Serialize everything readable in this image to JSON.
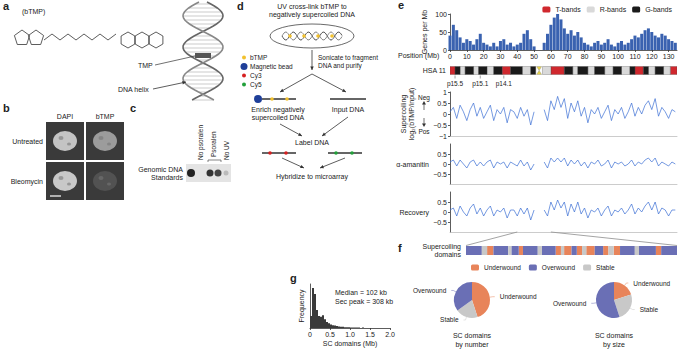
{
  "figure": {
    "a": {
      "letter": "a",
      "compound": "(bTMP)",
      "labels": [
        "TMP",
        "DNA helix"
      ]
    },
    "b": {
      "letter": "b",
      "columns": [
        "DAPI",
        "bTMP"
      ],
      "rows": [
        "Untreated",
        "Bleomycin"
      ]
    },
    "c": {
      "letter": "c",
      "row_label": "Genomic DNA Standards",
      "columns": [
        "No psoralen",
        "Psoralen",
        "No UV"
      ]
    },
    "d": {
      "letter": "d",
      "steps": [
        "UV cross-link bTMP to negatively supercoiled DNA",
        "Sonicate to fragment DNA and purify",
        "Enrich negatively supercoiled DNA",
        "Input DNA",
        "Label DNA",
        "Hybridize to microarray"
      ],
      "key": [
        "bTMP",
        "Magnetic bead",
        "Cy3",
        "Cy5"
      ]
    }
  },
  "chart_data": [
    {
      "type": "bar",
      "panel": "e",
      "xlabel": "Position (Mb)",
      "ylabel": "Genes per Mb",
      "color": "#3a62b0",
      "grid": false,
      "xlim": [
        0,
        135
      ],
      "xticks": [
        0,
        10,
        20,
        30,
        40,
        50,
        60,
        70,
        80,
        90,
        100,
        110,
        120,
        130
      ],
      "ylim": [
        0,
        100
      ],
      "yticks": [
        0,
        50,
        100
      ],
      "x": [
        0,
        2,
        4,
        6,
        8,
        10,
        12,
        14,
        16,
        18,
        20,
        22,
        24,
        26,
        28,
        30,
        32,
        34,
        36,
        38,
        40,
        42,
        44,
        46,
        48,
        50,
        52,
        54,
        56,
        58,
        60,
        62,
        64,
        66,
        68,
        70,
        72,
        74,
        76,
        78,
        80,
        82,
        84,
        86,
        88,
        90,
        92,
        94,
        96,
        98,
        100,
        102,
        104,
        106,
        108,
        110,
        112,
        114,
        116,
        118,
        120,
        122,
        124,
        126,
        128,
        130,
        132,
        134
      ],
      "values": [
        40,
        70,
        55,
        35,
        20,
        30,
        25,
        15,
        30,
        45,
        20,
        15,
        10,
        20,
        10,
        25,
        30,
        15,
        20,
        10,
        15,
        20,
        45,
        55,
        30,
        10,
        0,
        0,
        20,
        45,
        70,
        90,
        100,
        85,
        60,
        45,
        55,
        40,
        50,
        35,
        20,
        15,
        10,
        20,
        25,
        15,
        20,
        30,
        15,
        10,
        20,
        25,
        15,
        20,
        30,
        40,
        35,
        45,
        55,
        60,
        50,
        40,
        35,
        45,
        40,
        30,
        25,
        20
      ]
    },
    {
      "type": "ideogram",
      "label": "HSA 11",
      "xlim": [
        0,
        135
      ],
      "legend": "top-right",
      "centromere": 53,
      "series": [
        {
          "name": "T-bands",
          "color": "#d0282e",
          "bands": [
            [
              0,
              3
            ],
            [
              31,
              36
            ],
            [
              60,
              68
            ],
            [
              110,
              115
            ],
            [
              131,
              135
            ]
          ]
        },
        {
          "name": "R-bands",
          "color": "#d9d9d9",
          "bands": [
            [
              6,
              9
            ],
            [
              14,
              17
            ],
            [
              22,
              26
            ],
            [
              43,
              48
            ],
            [
              55,
              60
            ],
            [
              73,
              76
            ],
            [
              82,
              86
            ],
            [
              92,
              97
            ],
            [
              102,
              107
            ],
            [
              118,
              122
            ],
            [
              127,
              131
            ]
          ]
        },
        {
          "name": "G-bands",
          "color": "#1a1a1a",
          "bands": [
            [
              3,
              6
            ],
            [
              9,
              14
            ],
            [
              17,
              22
            ],
            [
              26,
              31
            ],
            [
              36,
              43
            ],
            [
              48,
              51
            ],
            [
              68,
              73
            ],
            [
              76,
              82
            ],
            [
              86,
              92
            ],
            [
              97,
              102
            ],
            [
              107,
              110
            ],
            [
              115,
              118
            ],
            [
              122,
              127
            ]
          ]
        }
      ],
      "band_labels": [
        {
          "label": "p15.5",
          "position": 3
        },
        {
          "label": "p15.1",
          "position": 18
        },
        {
          "label": "p14.1",
          "position": 32
        }
      ]
    },
    {
      "type": "line",
      "ylabel": "Supercoiling log₂(bTMP/input)",
      "annotations": [
        "Neg",
        "Pos"
      ],
      "color": "#3b6fd4",
      "tick_labels": "y",
      "grid": false,
      "xlim": [
        0,
        135
      ],
      "ylim": [
        -1,
        1
      ],
      "yticks": [
        {
          "value": -1,
          "label": "−1"
        },
        {
          "value": -0.5,
          "label": "−0.5"
        },
        0,
        0.5,
        1
      ],
      "x": [
        0,
        2,
        4,
        6,
        8,
        10,
        12,
        14,
        16,
        18,
        20,
        22,
        24,
        26,
        28,
        30,
        32,
        34,
        36,
        38,
        40,
        42,
        44,
        46,
        48,
        50,
        52,
        54,
        56,
        58,
        60,
        62,
        64,
        66,
        68,
        70,
        72,
        74,
        76,
        78,
        80,
        82,
        84,
        86,
        88,
        90,
        92,
        94,
        96,
        98,
        100,
        102,
        104,
        106,
        108,
        110,
        112,
        114,
        116,
        118,
        120,
        122,
        124,
        126,
        128,
        130,
        132,
        134
      ],
      "values": [
        0.1,
        0.3,
        -0.2,
        0.4,
        0.1,
        -0.3,
        0.2,
        0.5,
        -0.1,
        0.3,
        -0.2,
        0.1,
        0.4,
        -0.3,
        0.2,
        0,
        0.3,
        -0.4,
        0.2,
        0.1,
        -0.2,
        0.3,
        -0.1,
        0.2,
        -0.5,
        0.1,
        null,
        null,
        0.2,
        -0.3,
        0.6,
        0.2,
        0.8,
        0.3,
        0.7,
        -0.2,
        0.5,
        0.1,
        0.6,
        -0.1,
        0.3,
        -0.4,
        0.2,
        0,
        0.3,
        -0.2,
        0.1,
        0.4,
        -0.3,
        0.2,
        0,
        0.3,
        -0.2,
        0.1,
        0.5,
        -0.1,
        0.3,
        0,
        0.4,
        0.6,
        0.2,
        0.7,
        -0.1,
        0.3,
        0.1,
        -0.2,
        0.2,
        0.1
      ]
    },
    {
      "type": "line",
      "title": "α-amanitin",
      "color": "#3b6fd4",
      "tick_labels": "y",
      "grid": false,
      "xlim": [
        0,
        135
      ],
      "ylim": [
        -1,
        1
      ],
      "yticks": [
        {
          "value": -0.5,
          "label": "−0.5"
        },
        0,
        0.5
      ],
      "x": [
        0,
        2,
        4,
        6,
        8,
        10,
        12,
        14,
        16,
        18,
        20,
        22,
        24,
        26,
        28,
        30,
        32,
        34,
        36,
        38,
        40,
        42,
        44,
        46,
        48,
        50,
        52,
        54,
        56,
        58,
        60,
        62,
        64,
        66,
        68,
        70,
        72,
        74,
        76,
        78,
        80,
        82,
        84,
        86,
        88,
        90,
        92,
        94,
        96,
        98,
        100,
        102,
        104,
        106,
        108,
        110,
        112,
        114,
        116,
        118,
        120,
        122,
        124,
        126,
        128,
        130,
        132,
        134
      ],
      "values": [
        0.1,
        0.2,
        -0.1,
        0.2,
        0,
        -0.2,
        0.1,
        0.2,
        -0.1,
        0.1,
        -0.1,
        0.1,
        0.2,
        -0.2,
        0.1,
        0,
        0.1,
        -0.2,
        0.1,
        0,
        -0.1,
        0.2,
        -0.1,
        0.1,
        -0.3,
        0,
        null,
        null,
        0.1,
        -0.2,
        0.3,
        0.1,
        0.3,
        0.1,
        0.3,
        -0.1,
        0.2,
        0,
        0.2,
        -0.1,
        0.1,
        -0.2,
        0.1,
        0,
        0.2,
        -0.1,
        0,
        0.2,
        -0.2,
        0.1,
        0,
        0.1,
        -0.1,
        0,
        0.2,
        -0.1,
        0.1,
        0,
        0.2,
        0.3,
        0.1,
        0.3,
        -0.1,
        0.1,
        0,
        -0.1,
        0.1,
        0
      ]
    },
    {
      "type": "line",
      "title": "Recovery",
      "color": "#3b6fd4",
      "tick_labels": "y",
      "grid": false,
      "xlim": [
        0,
        135
      ],
      "ylim": [
        -1,
        1
      ],
      "yticks": [
        {
          "value": -0.5,
          "label": "−0.5"
        },
        0,
        0.5
      ],
      "x": [
        0,
        2,
        4,
        6,
        8,
        10,
        12,
        14,
        16,
        18,
        20,
        22,
        24,
        26,
        28,
        30,
        32,
        34,
        36,
        38,
        40,
        42,
        44,
        46,
        48,
        50,
        52,
        54,
        56,
        58,
        60,
        62,
        64,
        66,
        68,
        70,
        72,
        74,
        76,
        78,
        80,
        82,
        84,
        86,
        88,
        90,
        92,
        94,
        96,
        98,
        100,
        102,
        104,
        106,
        108,
        110,
        112,
        114,
        116,
        118,
        120,
        122,
        124,
        126,
        128,
        130,
        132,
        134
      ],
      "values": [
        0.1,
        0.2,
        -0.2,
        0.3,
        0,
        -0.2,
        0.2,
        0.4,
        -0.1,
        0.2,
        -0.2,
        0.1,
        0.3,
        -0.2,
        0.1,
        0,
        0.2,
        -0.3,
        0.1,
        0.1,
        -0.2,
        0.2,
        -0.1,
        0.2,
        -0.4,
        0.1,
        null,
        null,
        0.1,
        -0.2,
        0.5,
        0.1,
        0.6,
        0.2,
        0.5,
        -0.2,
        0.4,
        0,
        0.5,
        -0.1,
        0.2,
        -0.3,
        0.1,
        0,
        0.2,
        -0.2,
        0.1,
        0.3,
        -0.2,
        0.1,
        0,
        0.2,
        -0.1,
        0.1,
        0.4,
        -0.1,
        0.2,
        0,
        0.3,
        0.5,
        0.1,
        0.5,
        -0.1,
        0.2,
        0.1,
        -0.2,
        0.1,
        0.1
      ]
    },
    {
      "type": "domains",
      "panel": "f",
      "title": "Supercoiling domains",
      "xlim": [
        40,
        60
      ],
      "legend": "bottom",
      "series": [
        {
          "name": "Underwound",
          "color": "#e8845a",
          "segments": [
            [
              42,
              42.6
            ],
            [
              45,
              45.4
            ],
            [
              48.5,
              49
            ],
            [
              49.3,
              50
            ],
            [
              50.5,
              51
            ],
            [
              51.4,
              52.2
            ],
            [
              53,
              53.5
            ],
            [
              54,
              54.6
            ],
            [
              58,
              58.5
            ]
          ]
        },
        {
          "name": "Overwound",
          "color": "#6a6fb5",
          "segments": [
            [
              40,
              41.5
            ],
            [
              42.6,
              44
            ],
            [
              44.3,
              45
            ],
            [
              45.4,
              46.8
            ],
            [
              47.2,
              48.5
            ],
            [
              50,
              50.5
            ],
            [
              52.2,
              53
            ],
            [
              54.6,
              56
            ],
            [
              56.4,
              58
            ],
            [
              58.5,
              60
            ]
          ]
        },
        {
          "name": "Stable",
          "color": "#c8c8c8",
          "segments": [
            [
              41.5,
              42
            ],
            [
              44,
              44.3
            ],
            [
              46.8,
              47.2
            ],
            [
              49,
              49.3
            ],
            [
              51,
              51.4
            ],
            [
              53.5,
              54
            ],
            [
              56,
              56.4
            ]
          ]
        }
      ]
    },
    {
      "type": "histogram",
      "panel": "g",
      "xlabel": "SC domains (Mb)",
      "ylabel": "Frequency",
      "color": "#3a3a3a",
      "tick_labels": "x",
      "grid": false,
      "annotations": [
        "Median = 102 kb",
        "Sec peak = 308 kb"
      ],
      "xlim": [
        0,
        2
      ],
      "xticks": [
        0,
        0.5,
        {
          "value": 1,
          "label": "1.0"
        },
        1.5,
        {
          "value": 2,
          "label": "2.0"
        }
      ],
      "ylim": [
        0,
        110
      ],
      "bins": [
        0,
        0.05,
        0.1,
        0.15,
        0.2,
        0.25,
        0.3,
        0.35,
        0.4,
        0.45,
        0.5,
        0.55,
        0.6,
        0.65,
        0.7,
        0.75,
        0.8,
        0.85,
        0.9,
        0.95,
        1,
        1.05,
        1.1,
        1.15,
        1.2,
        1.25,
        1.3,
        1.35,
        1.4,
        1.45,
        1.5,
        1.55,
        1.6,
        1.65,
        1.7,
        1.75,
        1.8,
        1.85,
        1.9,
        1.95,
        2
      ],
      "counts": [
        30,
        100,
        85,
        45,
        30,
        28,
        32,
        22,
        15,
        12,
        9,
        7,
        6,
        5,
        4,
        3,
        3,
        2,
        2,
        2,
        1,
        1,
        1,
        1,
        1,
        0,
        1,
        0,
        0,
        0,
        0,
        0,
        0,
        0,
        0,
        0,
        0,
        0,
        0,
        0
      ]
    },
    {
      "type": "pie",
      "title": "SC domains by number",
      "categories": [
        "Underwound",
        "Stable",
        "Overwound"
      ],
      "values": [
        45,
        20,
        35
      ],
      "colors": [
        "#e8845a",
        "#c8c8c8",
        "#6a6fb5"
      ]
    },
    {
      "type": "pie",
      "title": "SC domains by size",
      "categories": [
        "Underwound",
        "Stable",
        "Overwound"
      ],
      "values": [
        20,
        25,
        55
      ],
      "colors": [
        "#e8845a",
        "#c8c8c8",
        "#6a6fb5"
      ]
    }
  ]
}
